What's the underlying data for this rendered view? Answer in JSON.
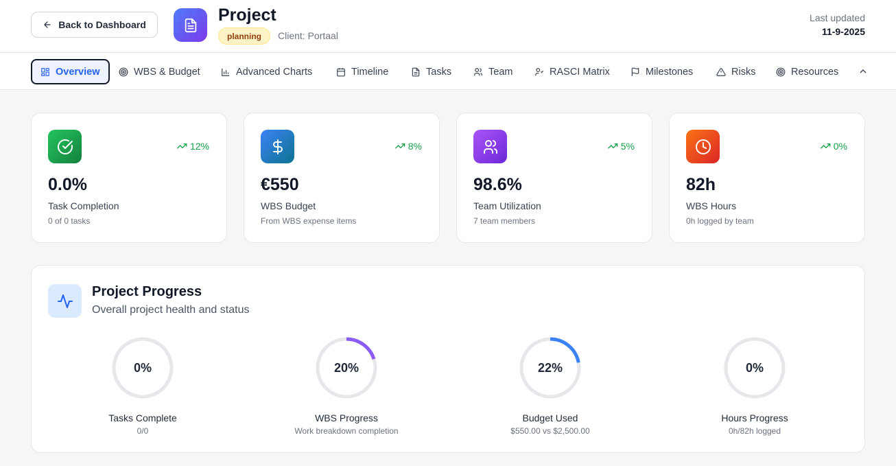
{
  "header": {
    "back_label": "Back to Dashboard",
    "title": "Project",
    "status_badge": "planning",
    "client": "Client: Portaal",
    "last_updated_label": "Last updated",
    "last_updated_date": "11-9-2025"
  },
  "tabs": [
    {
      "label": "Overview",
      "icon": "grid-icon",
      "active": true
    },
    {
      "label": "WBS & Budget",
      "icon": "target-icon"
    },
    {
      "label": "Advanced Charts",
      "icon": "bar-chart-icon"
    },
    {
      "label": "Timeline",
      "icon": "calendar-icon"
    },
    {
      "label": "Tasks",
      "icon": "file-icon"
    },
    {
      "label": "Team",
      "icon": "users-icon"
    },
    {
      "label": "RASCI Matrix",
      "icon": "user-check-icon"
    },
    {
      "label": "Milestones",
      "icon": "flag-icon"
    },
    {
      "label": "Risks",
      "icon": "warning-icon"
    },
    {
      "label": "Resources",
      "icon": "target-icon"
    }
  ],
  "stats": [
    {
      "value": "0.0%",
      "label": "Task Completion",
      "sub": "0 of 0 tasks",
      "trend": "12%",
      "color": "#16a34a",
      "icon": "check-circle-icon"
    },
    {
      "value": "€550",
      "label": "WBS Budget",
      "sub": "From WBS expense items",
      "trend": "8%",
      "color": "#2563eb",
      "icon": "dollar-icon"
    },
    {
      "value": "98.6%",
      "label": "Team Utilization",
      "sub": "7 team members",
      "trend": "5%",
      "color": "#7c3aed",
      "icon": "users-icon"
    },
    {
      "value": "82h",
      "label": "WBS Hours",
      "sub": "0h logged by team",
      "trend": "0%",
      "color": "#ea580c",
      "icon": "clock-icon"
    }
  ],
  "progress": {
    "title": "Project Progress",
    "subtitle": "Overall project health and status",
    "rings": [
      {
        "pct_label": "0%",
        "fraction": 0.0,
        "label": "Tasks Complete",
        "sub": "0/0",
        "color": "#22c55e"
      },
      {
        "pct_label": "20%",
        "fraction": 0.2,
        "label": "WBS Progress",
        "sub": "Work breakdown completion",
        "color": "#8b5cf6"
      },
      {
        "pct_label": "22%",
        "fraction": 0.22,
        "label": "Budget Used",
        "sub": "$550.00 vs $2,500.00",
        "color": "#3b82f6"
      },
      {
        "pct_label": "0%",
        "fraction": 0.0,
        "label": "Hours Progress",
        "sub": "0h/82h logged",
        "color": "#f97316"
      }
    ]
  }
}
